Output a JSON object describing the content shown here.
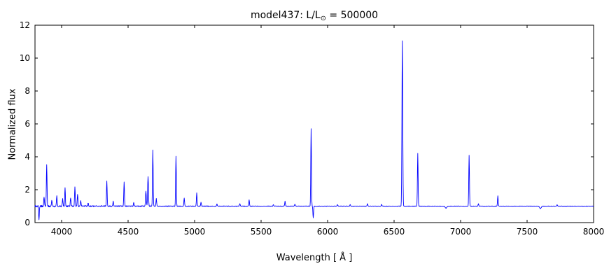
{
  "chart_data": {
    "type": "line",
    "title": "model437: L/L⊙ = 500000",
    "title_parts": {
      "prefix": "model437: L/L",
      "sun_symbol": "⊙",
      "suffix": " = 500000"
    },
    "xlabel": "Wavelength [ Å ]",
    "ylabel": "Normalized flux",
    "xlim": [
      3800,
      8000
    ],
    "ylim": [
      0,
      12
    ],
    "x_ticks": [
      4000,
      4500,
      5000,
      5500,
      6000,
      6500,
      7000,
      7500,
      8000
    ],
    "y_ticks": [
      0,
      2,
      4,
      6,
      8,
      10,
      12
    ],
    "grid": false,
    "legend": "none",
    "line_color": "#0000ff",
    "axis_color": "#000000",
    "continuum_level": 1.0,
    "sample_step_angstrom": 2,
    "noise": {
      "base_amplitude": 0.012,
      "blue_extra_amplitude": 0.05,
      "blue_decay_scale": 600
    },
    "features_note": "emission/absorption lines: c=center wavelength (A), a=amplitude above continuum (normalized flux), s=gaussian sigma (A)",
    "features": [
      {
        "c": 3830,
        "a": -0.8,
        "s": 2.5
      },
      {
        "c": 3868,
        "a": 0.55,
        "s": 2.5
      },
      {
        "c": 3888,
        "a": 2.5,
        "s": 2.5
      },
      {
        "c": 3926,
        "a": 0.35,
        "s": 2.5
      },
      {
        "c": 3964,
        "a": 0.6,
        "s": 2.5
      },
      {
        "c": 4008,
        "a": 0.45,
        "s": 2.5
      },
      {
        "c": 4026,
        "a": 1.1,
        "s": 2.5
      },
      {
        "c": 4068,
        "a": 0.5,
        "s": 2.5
      },
      {
        "c": 4100,
        "a": 1.15,
        "s": 2.5
      },
      {
        "c": 4120,
        "a": 0.75,
        "s": 2.5
      },
      {
        "c": 4144,
        "a": 0.3,
        "s": 2.5
      },
      {
        "c": 4200,
        "a": 0.2,
        "s": 2.5
      },
      {
        "c": 4340,
        "a": 1.5,
        "s": 2.5
      },
      {
        "c": 4388,
        "a": 0.3,
        "s": 2.5
      },
      {
        "c": 4470,
        "a": 1.45,
        "s": 2.5
      },
      {
        "c": 4542,
        "a": 0.2,
        "s": 2.5
      },
      {
        "c": 4634,
        "a": 0.9,
        "s": 3.0
      },
      {
        "c": 4650,
        "a": 1.8,
        "s": 3.0
      },
      {
        "c": 4686,
        "a": 3.4,
        "s": 2.5
      },
      {
        "c": 4712,
        "a": 0.45,
        "s": 2.5
      },
      {
        "c": 4860,
        "a": 3.05,
        "s": 2.5
      },
      {
        "c": 4922,
        "a": 0.5,
        "s": 2.5
      },
      {
        "c": 5016,
        "a": 0.8,
        "s": 2.5
      },
      {
        "c": 5048,
        "a": 0.25,
        "s": 2.5
      },
      {
        "c": 5168,
        "a": 0.12,
        "s": 2.5
      },
      {
        "c": 5340,
        "a": 0.15,
        "s": 2.5
      },
      {
        "c": 5410,
        "a": 0.38,
        "s": 2.5
      },
      {
        "c": 5592,
        "a": 0.1,
        "s": 2.5
      },
      {
        "c": 5680,
        "a": 0.3,
        "s": 2.5
      },
      {
        "c": 5754,
        "a": 0.12,
        "s": 2.5
      },
      {
        "c": 5876,
        "a": 4.7,
        "s": 2.5
      },
      {
        "c": 5892,
        "a": -0.72,
        "s": 2.5
      },
      {
        "c": 6074,
        "a": 0.1,
        "s": 2.5
      },
      {
        "c": 6170,
        "a": 0.1,
        "s": 2.5
      },
      {
        "c": 6300,
        "a": 0.15,
        "s": 2.5
      },
      {
        "c": 6406,
        "a": 0.1,
        "s": 2.5
      },
      {
        "c": 6562,
        "a": 10.05,
        "s": 3.0
      },
      {
        "c": 6678,
        "a": 3.2,
        "s": 2.5
      },
      {
        "c": 6890,
        "a": -0.12,
        "s": 6.0
      },
      {
        "c": 7064,
        "a": 3.1,
        "s": 2.5
      },
      {
        "c": 7134,
        "a": 0.15,
        "s": 2.5
      },
      {
        "c": 7280,
        "a": 0.62,
        "s": 2.5
      },
      {
        "c": 7600,
        "a": -0.15,
        "s": 6.0
      },
      {
        "c": 7726,
        "a": 0.08,
        "s": 2.5
      }
    ]
  }
}
